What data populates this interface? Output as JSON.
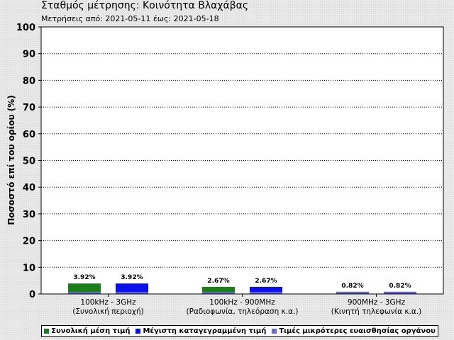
{
  "header": {
    "title": "Σταθμός μέτρησης: Κοινότητα Βλαχάβας",
    "subtitle": "Μετρήσεις από: 2021-05-11 έως: 2021-05-18"
  },
  "chart_data": {
    "type": "bar",
    "ylabel": "Ποσοστό επί του ορίου (%)",
    "ylim": [
      0,
      100
    ],
    "yticks": [
      0,
      10,
      20,
      30,
      40,
      50,
      60,
      70,
      80,
      90,
      100
    ],
    "grid": true,
    "legend_position": "bottom",
    "categories": [
      {
        "line1": "100kHz - 3GHz",
        "line2": "(Συνολική περιοχή)"
      },
      {
        "line1": "100kHz - 900MHz",
        "line2": "(Ραδιοφωνία, τηλεόραση κ.α.)"
      },
      {
        "line1": "900MHz - 3GHz",
        "line2": "(Κινητή τηλεφωνία κ.α.)"
      }
    ],
    "series": [
      {
        "name": "Συνολική μέση τιμή",
        "color": "#1a7f1a",
        "values": [
          3.92,
          2.67,
          0.82
        ],
        "labels": [
          "3.92%",
          "2.67%",
          "0.82%"
        ]
      },
      {
        "name": "Μέγιστη καταγεγραμμένη τιμή",
        "color": "#0a10ee",
        "values": [
          3.92,
          2.67,
          0.82
        ],
        "labels": [
          "3.92%",
          "2.67%",
          "0.82%"
        ]
      },
      {
        "name": "Τιμές μικρότερες ευαισθησίας οργάνου",
        "color": "#6b6bc9",
        "values": [
          0.82,
          0.82,
          0.82
        ]
      }
    ]
  }
}
